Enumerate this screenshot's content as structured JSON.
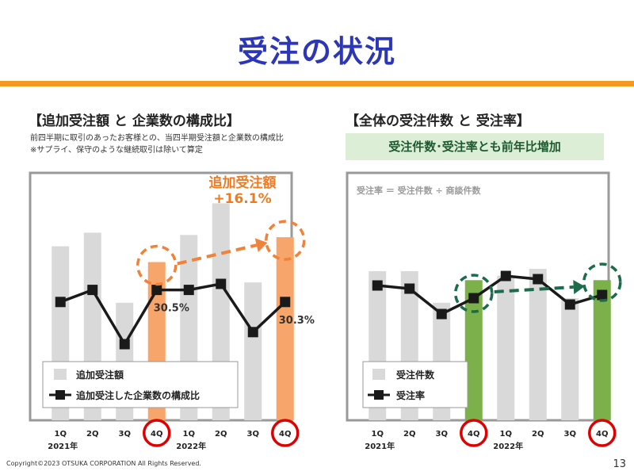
{
  "header": {
    "title": "受注の状況"
  },
  "left": {
    "section_title": "【追加受注額 と 企業数の構成比】",
    "note_line1": "前四半期に取引のあったお客様との、当四半期受注額と企業数の構成比",
    "note_line2": "※サプライ、保守のような継続取引は除いて算定",
    "callout_line1": "追加受注額",
    "callout_line2": "+16.1%",
    "point_label_1": "30.5%",
    "point_label_2": "30.3%",
    "legend_bar": "追加受注額",
    "legend_line": "追加受注した企業数の構成比"
  },
  "right": {
    "section_title": "【全体の受注件数 と 受注率】",
    "highlight": "受注件数･受注率とも前年比増加",
    "formula": "受注率 ＝ 受注件数 ÷ 商談件数",
    "legend_bar": "受注件数",
    "legend_line": "受注率"
  },
  "footer": {
    "copyright": "Copyright©2023 OTSUKA CORPORATION All Rights Reserved.",
    "page": "13"
  },
  "colors": {
    "title": "#2c36b8",
    "accent_orange": "#f39a1e",
    "bar_gray": "#d9d9d9",
    "bar_orange": "#f7a56a",
    "bar_green": "#7bb04a",
    "circle_red": "#e00000",
    "arrow_orange": "#f0823a",
    "arrow_green": "#1c6b4a"
  },
  "chart_data": [
    {
      "type": "bar",
      "categories": [
        "1Q",
        "2Q",
        "3Q",
        "4Q",
        "1Q",
        "2Q",
        "3Q",
        "4Q"
      ],
      "year_labels": [
        "2021年",
        "2022年"
      ],
      "series": [
        {
          "name": "追加受注額",
          "values": [
            77,
            83,
            52,
            70,
            82,
            96,
            61,
            81
          ],
          "highlight": [
            3,
            7
          ]
        },
        {
          "name": "追加受注した企業数の構成比",
          "type": "line",
          "values": [
            30.3,
            30.5,
            29.6,
            30.5,
            30.5,
            30.6,
            29.8,
            30.3
          ]
        }
      ],
      "data_labels": [
        {
          "index": 3,
          "text": "30.5%"
        },
        {
          "index": 7,
          "text": "30.3%"
        }
      ],
      "circled_categories": [
        3,
        7
      ],
      "annotation": "追加受注額 +16.1%"
    },
    {
      "type": "bar",
      "categories": [
        "1Q",
        "2Q",
        "3Q",
        "4Q",
        "1Q",
        "2Q",
        "3Q",
        "4Q"
      ],
      "year_labels": [
        "2021年",
        "2022年"
      ],
      "series": [
        {
          "name": "受注件数",
          "values": [
            66,
            66,
            52,
            62,
            64,
            67,
            54,
            62
          ],
          "highlight": [
            3,
            7
          ]
        },
        {
          "name": "受注率",
          "type": "line",
          "values": [
            62,
            61,
            53,
            58,
            65,
            64,
            56,
            59
          ]
        }
      ],
      "circled_categories": [
        3,
        7
      ],
      "annotation": "受注率 ＝ 受注件数 ÷ 商談件数"
    }
  ]
}
